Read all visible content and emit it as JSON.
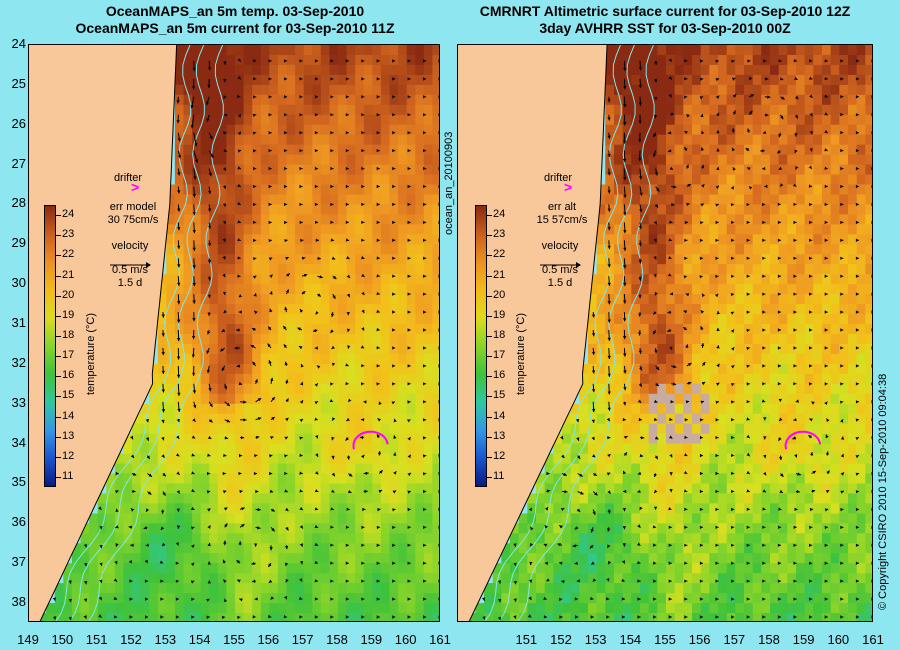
{
  "left_panel": {
    "title_line1": "OceanMAPS_an 5m temp. 03-Sep-2010",
    "title_line2": "OceanMAPS_an 5m current for 03-Sep-2010 11Z",
    "drifter_label": "drifter",
    "err_label_1": "err model",
    "err_label_2": "30 75cm/s",
    "velocity_label": "velocity",
    "velocity_scale_1": "0.5 m/s",
    "velocity_scale_2": "1.5 d"
  },
  "right_panel": {
    "title_line1": "CMRNRT Altimetric surface current for 03-Sep-2010 12Z",
    "title_line2": "3day AVHRR SST for 03-Sep-2010 00Z",
    "drifter_label": "drifter",
    "err_label_1": "err alt",
    "err_label_2": "15 57cm/s",
    "velocity_label": "velocity",
    "velocity_scale_1": "0.5 m/s",
    "velocity_scale_2": "1.5 d"
  },
  "colorbar": {
    "label": "temperature (°C)",
    "ticks": [
      "24",
      "23",
      "22",
      "21",
      "20",
      "19",
      "18",
      "17",
      "16",
      "15",
      "14",
      "13",
      "12",
      "11"
    ],
    "min": 10.5,
    "max": 24.5
  },
  "side_text_left": "ocean_an_20100903",
  "side_text_right": "© Copyright CSIRO 2010    15-Sep-2010 09:04:38",
  "axes": {
    "lat_ticks": [
      "24",
      "25",
      "26",
      "27",
      "28",
      "29",
      "30",
      "31",
      "32",
      "33",
      "34",
      "35",
      "36",
      "37",
      "38"
    ],
    "lon_ticks_left": [
      "149",
      "150",
      "151",
      "152",
      "153",
      "154",
      "155",
      "156",
      "157",
      "158",
      "159",
      "160",
      "161"
    ],
    "lon_ticks_right": [
      "151",
      "152",
      "153",
      "154",
      "155",
      "156",
      "157",
      "158",
      "159",
      "160",
      "161"
    ],
    "lat_range": [
      24,
      38.5
    ],
    "lon_range": [
      149,
      161
    ]
  },
  "colors": {
    "land": "#f9c89a",
    "frame": "#8ee6f0",
    "drifter": "#ff00ff",
    "contour": "#7fe8e8"
  }
}
